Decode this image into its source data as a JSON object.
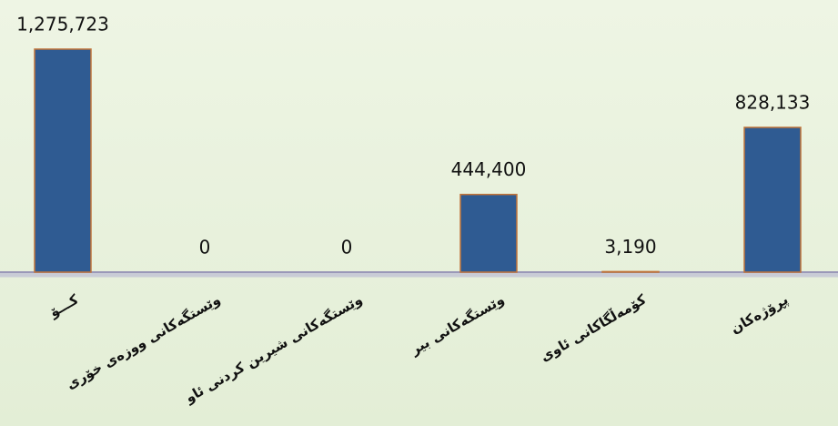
{
  "chart_data": {
    "type": "bar",
    "categories": [
      "کـــۆ",
      "وێستگەکانی ووزەی خۆری",
      "وێستگەکانی شیرین کردنی ئاو",
      "وێستگەکانی بیر",
      "کۆمەڵگاکانی ئاوی",
      "پڕۆژەکان"
    ],
    "values": [
      1275723,
      0,
      0,
      444400,
      3190,
      828133
    ],
    "value_labels": [
      "1,275,723",
      "0",
      "0",
      "444,400",
      "3,190",
      "828,133"
    ],
    "color": "#2f5b92",
    "ylim": [
      0,
      1300000
    ]
  }
}
